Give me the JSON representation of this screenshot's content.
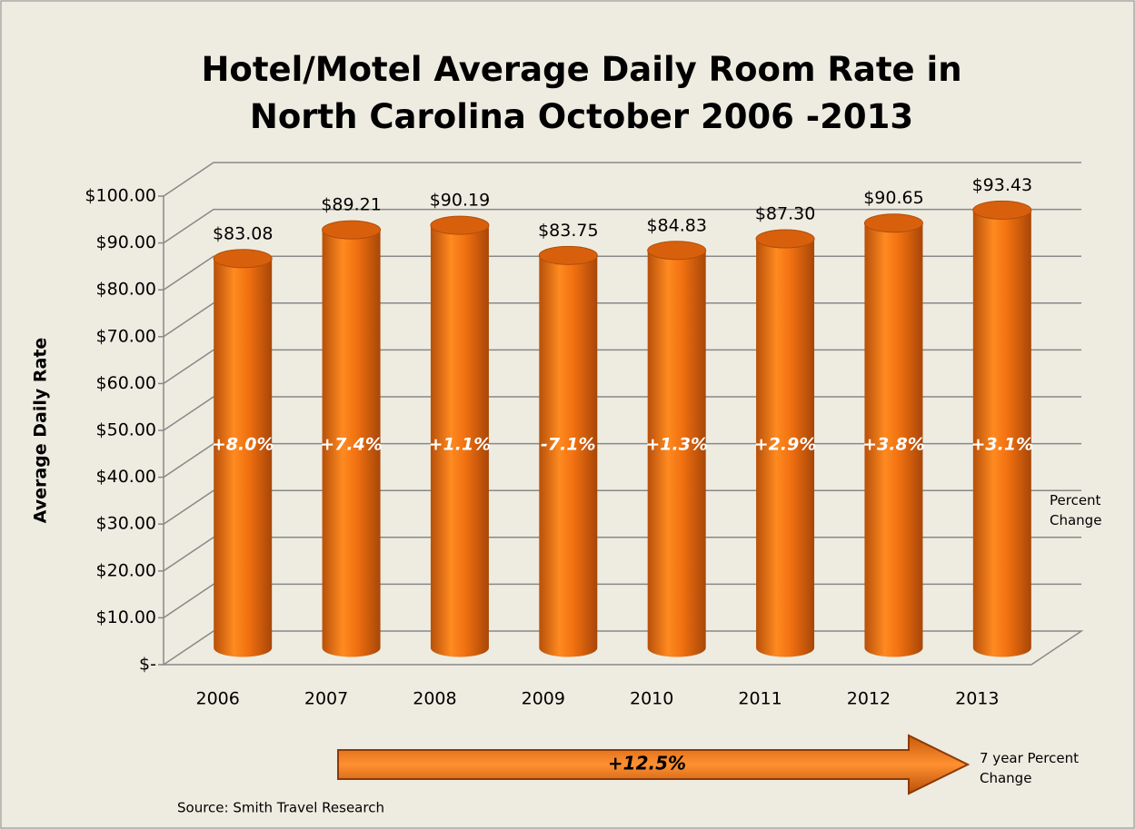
{
  "chart_data": {
    "type": "bar",
    "title": "Hotel/Motel Average Daily Room Rate in North Carolina October 2006 -2013",
    "ylabel": "Average Daily Rate",
    "categories": [
      "2006",
      "2007",
      "2008",
      "2009",
      "2010",
      "2011",
      "2012",
      "2013"
    ],
    "values": [
      83.08,
      89.21,
      90.19,
      83.75,
      84.83,
      87.3,
      90.65,
      93.43
    ],
    "value_labels": [
      "$83.08",
      "$89.21",
      "$90.19",
      "$83.75",
      "$84.83",
      "$87.30",
      "$90.65",
      "$93.43"
    ],
    "percent_changes": [
      "+8.0%",
      "+7.4%",
      "+1.1%",
      "-7.1%",
      "+1.3%",
      "+2.9%",
      "+3.8%",
      "+3.1%"
    ],
    "percent_change_label": "Percent Change",
    "total_change": "+12.5%",
    "total_change_label": "7 year Percent Change",
    "source": "Source: Smith Travel Research",
    "color": "#f07410",
    "ylim": [
      0,
      100
    ],
    "yticks": [
      {
        "value": 0,
        "label": "$-"
      },
      {
        "value": 10,
        "label": "$10.00"
      },
      {
        "value": 20,
        "label": "$20.00"
      },
      {
        "value": 30,
        "label": "$30.00"
      },
      {
        "value": 40,
        "label": "$40.00"
      },
      {
        "value": 50,
        "label": "$50.00"
      },
      {
        "value": 60,
        "label": "$60.00"
      },
      {
        "value": 70,
        "label": "$70.00"
      },
      {
        "value": 80,
        "label": "$80.00"
      },
      {
        "value": 90,
        "label": "$90.00"
      },
      {
        "value": 100,
        "label": "$100.00"
      }
    ],
    "grid": true
  }
}
